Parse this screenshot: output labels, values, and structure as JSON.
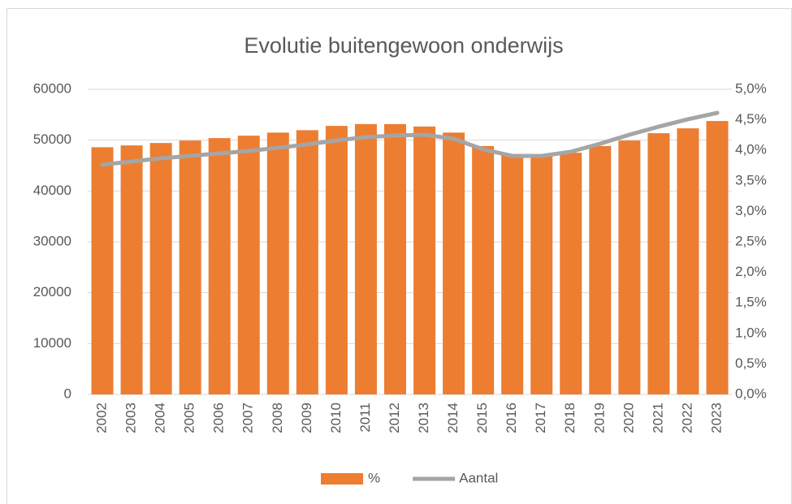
{
  "chart_data": {
    "type": "bar_line",
    "title": "Evolutie buitengewoon onderwijs",
    "categories": [
      "2002",
      "2003",
      "2004",
      "2005",
      "2006",
      "2007",
      "2008",
      "2009",
      "2010",
      "2011",
      "2012",
      "2013",
      "2014",
      "2015",
      "2016",
      "2017",
      "2018",
      "2019",
      "2020",
      "2021",
      "2022",
      "2023"
    ],
    "series": [
      {
        "name": "%",
        "type": "bar",
        "axis": "y2",
        "color": "#ED7D31",
        "values": [
          4.05,
          4.08,
          4.12,
          4.16,
          4.2,
          4.24,
          4.29,
          4.33,
          4.4,
          4.43,
          4.43,
          4.39,
          4.29,
          4.07,
          3.94,
          3.92,
          3.96,
          4.07,
          4.16,
          4.28,
          4.36,
          4.48
        ]
      },
      {
        "name": "Aantal",
        "type": "line",
        "axis": "y",
        "color": "#A5A5A5",
        "values": [
          45160,
          45800,
          46430,
          46900,
          47400,
          47870,
          48500,
          49150,
          49950,
          50580,
          50900,
          51060,
          50260,
          48190,
          46900,
          46900,
          47710,
          49300,
          51060,
          52650,
          54100,
          55370
        ]
      }
    ],
    "ylim": [
      0,
      60000
    ],
    "yticks": [
      0,
      10000,
      20000,
      30000,
      40000,
      50000,
      60000
    ],
    "y2lim": [
      0,
      5
    ],
    "y2ticks": [
      {
        "value": 0,
        "label": "0,0%"
      },
      {
        "value": 0.5,
        "label": "0,5%"
      },
      {
        "value": 1,
        "label": "1,0%"
      },
      {
        "value": 1.5,
        "label": "1,5%"
      },
      {
        "value": 2,
        "label": "2,0%"
      },
      {
        "value": 2.5,
        "label": "2,5%"
      },
      {
        "value": 3,
        "label": "3,0%"
      },
      {
        "value": 3.5,
        "label": "3,5%"
      },
      {
        "value": 4,
        "label": "4,0%"
      },
      {
        "value": 4.5,
        "label": "4,5%"
      },
      {
        "value": 5,
        "label": "5,0%"
      }
    ],
    "grid": true,
    "legend": "bottom"
  }
}
